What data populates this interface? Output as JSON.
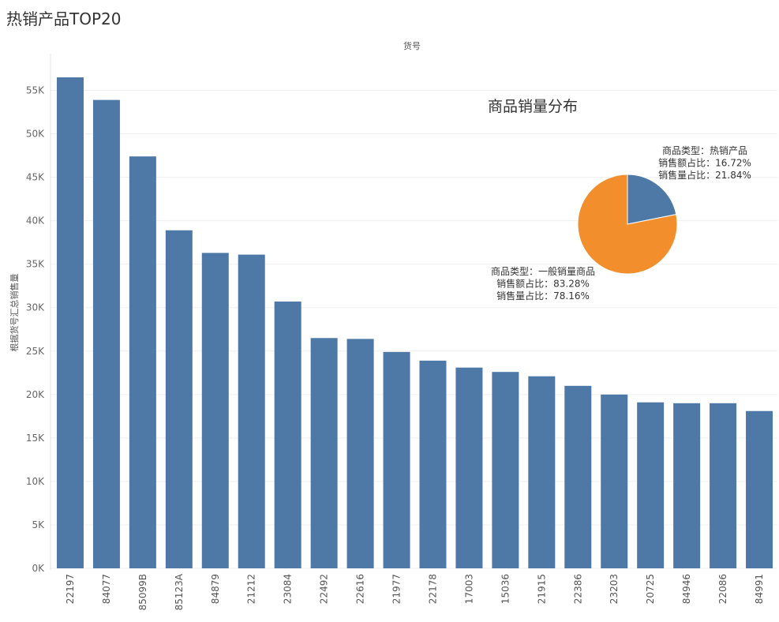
{
  "chart_data": [
    {
      "type": "bar",
      "title": "热销产品TOP20",
      "xlabel": "货号",
      "ylabel": "根据货号汇总销售量",
      "categories": [
        "22197",
        "84077",
        "85099B",
        "85123A",
        "84879",
        "21212",
        "23084",
        "22492",
        "22616",
        "21977",
        "22178",
        "17003",
        "15036",
        "21915",
        "22386",
        "23203",
        "20725",
        "84946",
        "22086",
        "84991"
      ],
      "values": [
        56500,
        53900,
        47400,
        38900,
        36300,
        36100,
        30700,
        26500,
        26400,
        24900,
        23900,
        23100,
        22600,
        22100,
        21000,
        20000,
        19100,
        19000,
        19000,
        18100
      ],
      "ylim": [
        0,
        56500
      ],
      "yticks": [
        0,
        5000,
        10000,
        15000,
        20000,
        25000,
        30000,
        35000,
        40000,
        45000,
        50000,
        55000
      ],
      "ytick_labels": [
        "0K",
        "5K",
        "10K",
        "15K",
        "20K",
        "25K",
        "30K",
        "35K",
        "40K",
        "45K",
        "50K",
        "55K"
      ],
      "grid": true,
      "color": "#4e79a7"
    },
    {
      "type": "pie",
      "title": "商品销量分布",
      "slices": [
        {
          "name": "热销产品",
          "value": 21.84,
          "color": "#4e79a7",
          "label_lines": [
            "商品类型：热销产品",
            "销售额占比：16.72%",
            "销售量占比：21.84%"
          ]
        },
        {
          "name": "一般销量商品",
          "value": 78.16,
          "color": "#f28e2b",
          "label_lines": [
            "商品类型：一般销量商品",
            "销售额占比：83.28%",
            "销售量占比：78.16%"
          ]
        }
      ]
    }
  ]
}
